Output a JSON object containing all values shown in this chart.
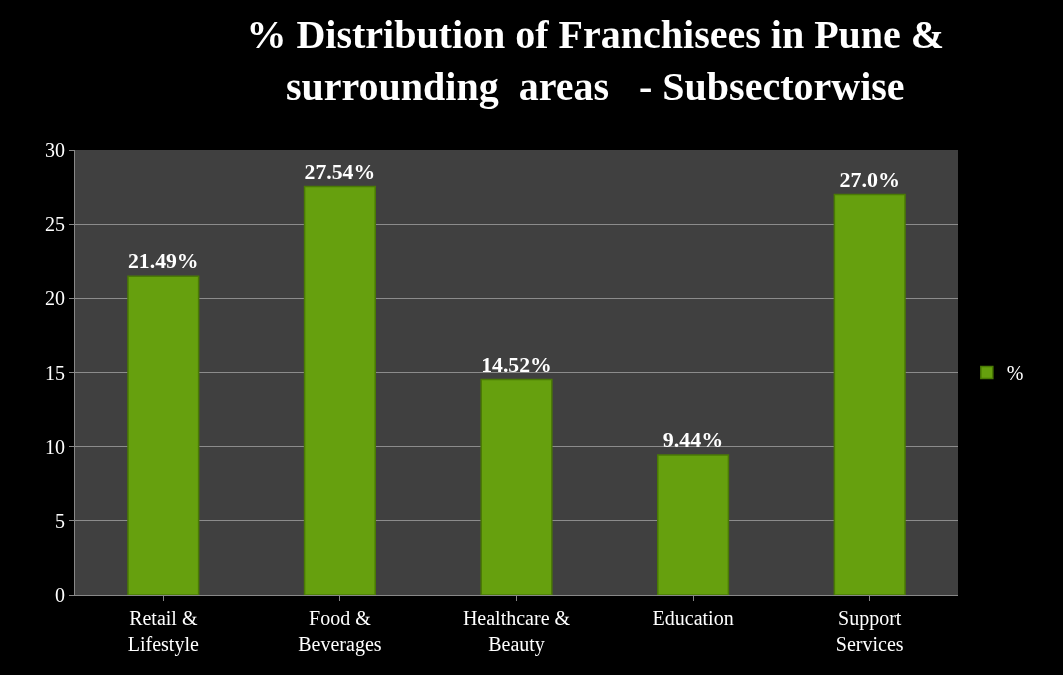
{
  "chart_data": {
    "type": "bar",
    "title": "% Distribution of Franchisees in Pune & surrounding  areas   - Subsectorwise",
    "categories": [
      "Retail & Lifestyle",
      "Food & Beverages",
      "Healthcare & Beauty",
      "Education",
      "Support Services"
    ],
    "series": [
      {
        "name": "%",
        "color": "#66a00e",
        "values": [
          21.49,
          27.54,
          14.52,
          9.44,
          27.0
        ],
        "value_labels": [
          "21.49%",
          "27.54%",
          "14.52%",
          "9.44%",
          "27.0%"
        ]
      }
    ],
    "ylim": [
      0,
      30
    ],
    "yticks": [
      0,
      5,
      10,
      15,
      20,
      25,
      30
    ],
    "grid": "y",
    "legend": "right"
  }
}
